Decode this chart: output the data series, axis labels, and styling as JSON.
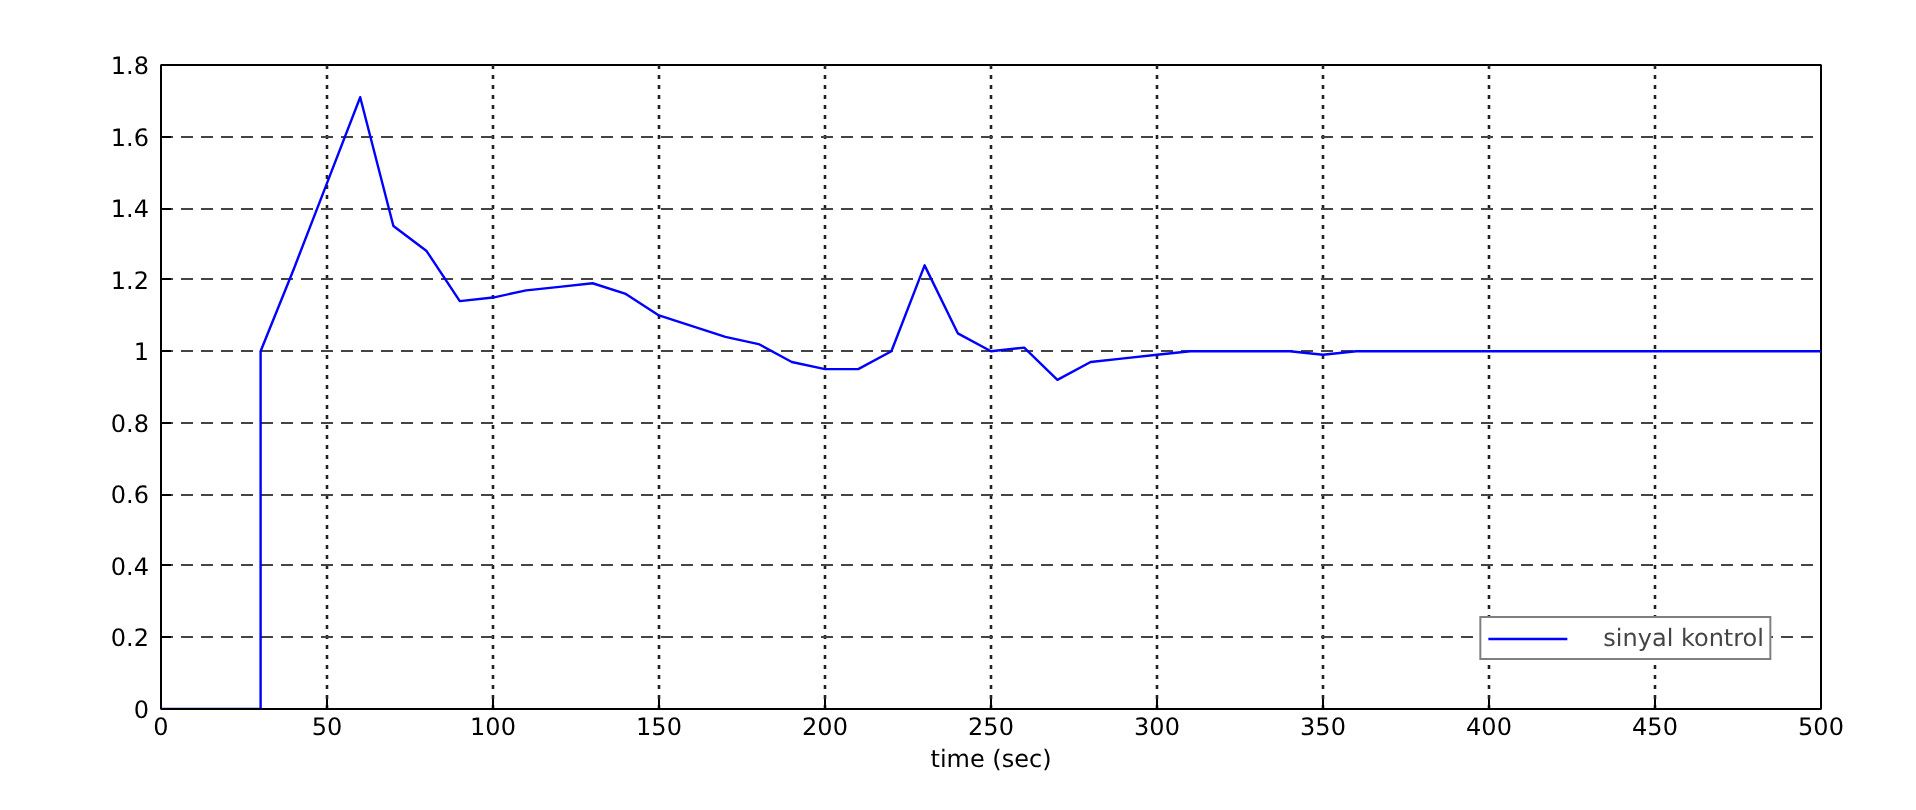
{
  "chart_data": {
    "type": "line",
    "xlabel": "time (sec)",
    "x": [
      0,
      30,
      30,
      40,
      50,
      60,
      70,
      80,
      90,
      100,
      110,
      120,
      130,
      140,
      150,
      160,
      170,
      180,
      190,
      200,
      210,
      220,
      230,
      240,
      250,
      260,
      270,
      280,
      290,
      300,
      310,
      320,
      330,
      340,
      350,
      360,
      370,
      380,
      390,
      400,
      410,
      420,
      430,
      440,
      450,
      460,
      470,
      480,
      490,
      500
    ],
    "series": [
      {
        "name": "sinyal kontrol",
        "color": "#0000ff",
        "values": [
          0,
          0,
          1,
          1.23,
          1.47,
          1.71,
          1.35,
          1.28,
          1.14,
          1.15,
          1.17,
          1.18,
          1.19,
          1.16,
          1.1,
          1.07,
          1.04,
          1.02,
          0.97,
          0.95,
          0.95,
          1.0,
          1.24,
          1.05,
          1.0,
          1.01,
          0.92,
          0.97,
          0.98,
          0.99,
          1.0,
          1.0,
          1.0,
          1.0,
          0.99,
          1.0,
          1.0,
          1.0,
          1.0,
          1.0,
          1.0,
          1.0,
          1.0,
          1.0,
          1.0,
          1.0,
          1.0,
          1.0,
          1.0,
          1.0
        ]
      }
    ],
    "xlim": [
      0,
      500
    ],
    "ylim": [
      0,
      1.8
    ],
    "xticks": [
      0,
      50,
      100,
      150,
      200,
      250,
      300,
      350,
      400,
      450,
      500
    ],
    "yticks": [
      0,
      0.2,
      0.4,
      0.6,
      0.8,
      1,
      1.2,
      1.4,
      1.6,
      1.8
    ],
    "grid": true,
    "legend": "bottom right",
    "line_style": "solid"
  }
}
